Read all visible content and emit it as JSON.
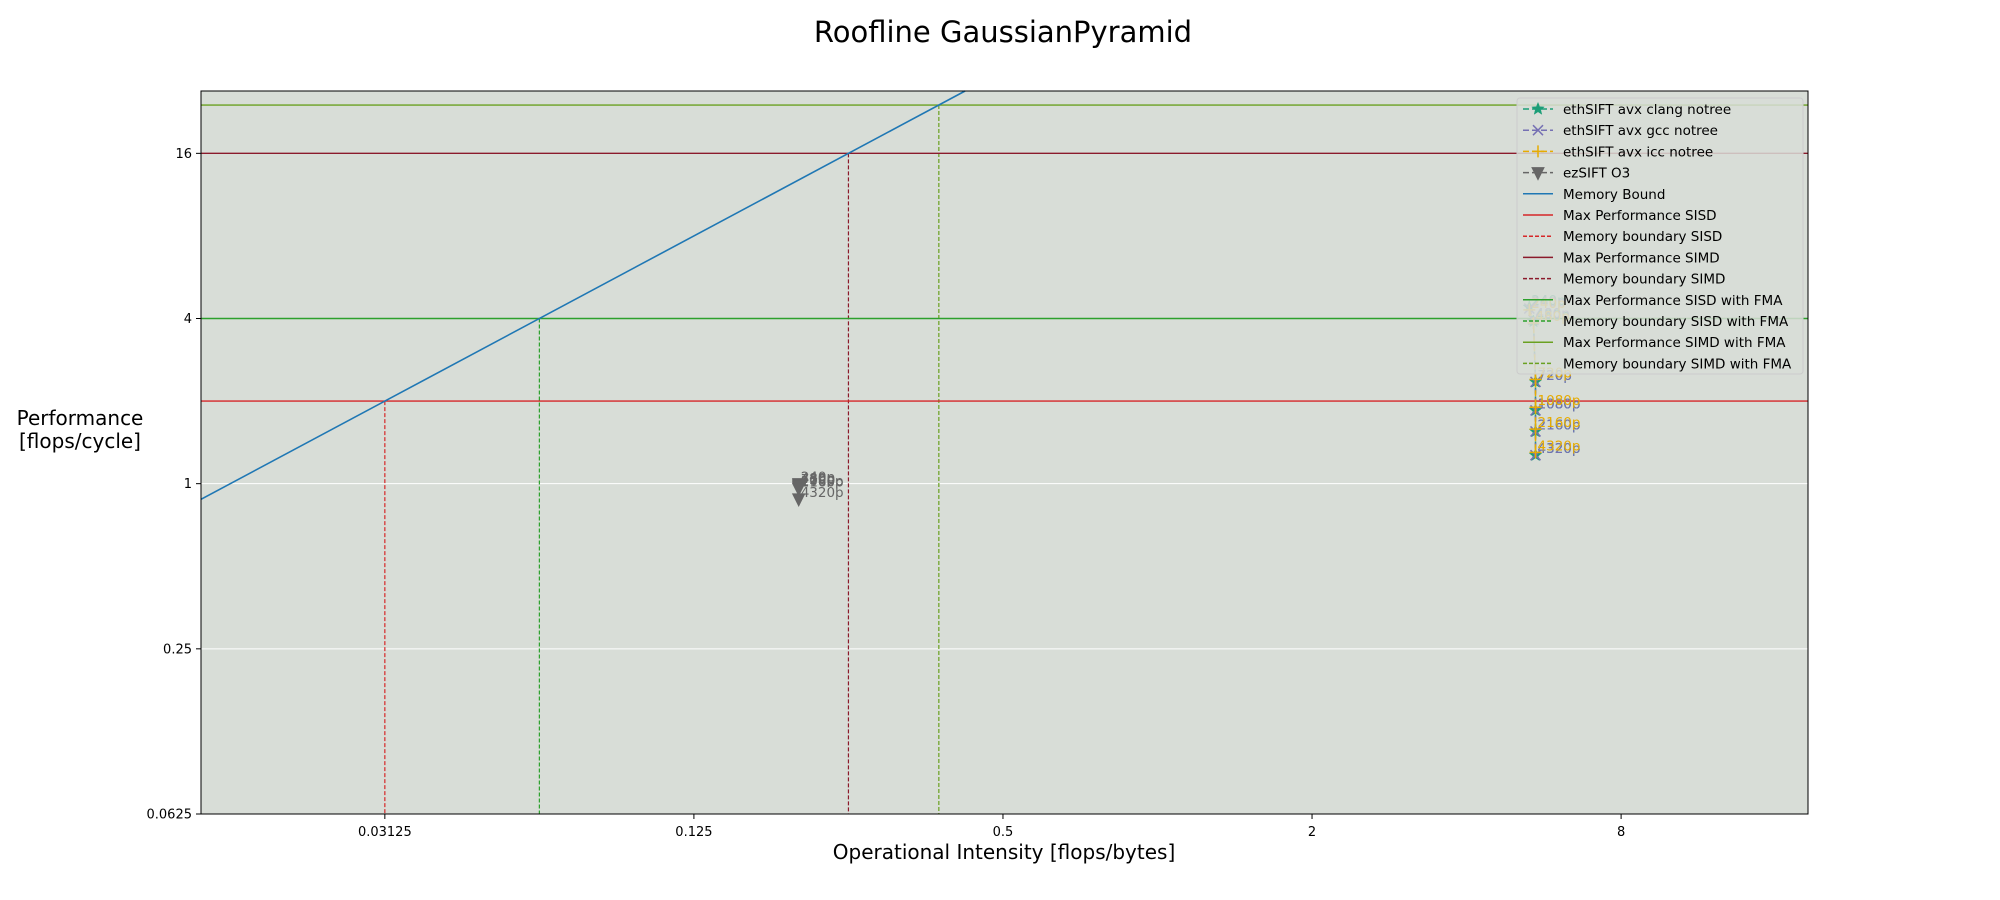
{
  "chart_data": {
    "type": "line",
    "title": "Roofline GaussianPyramid",
    "xlabel": "Operational Intensity [flops/bytes]",
    "ylabel": "Performance\n[flops/cycle]",
    "x_scale": "log2",
    "y_scale": "log2",
    "xlim": [
      0.0137,
      18.5
    ],
    "ylim": [
      0.0625,
      27
    ],
    "x_ticks": [
      0.03125,
      0.125,
      0.5,
      2,
      8
    ],
    "x_tick_labels": [
      "0.03125",
      "0.125",
      "0.5",
      "2",
      "8"
    ],
    "y_ticks": [
      0.0625,
      0.25,
      1,
      4,
      16
    ],
    "y_tick_labels": [
      "0.0625",
      "0.25",
      "1",
      "4",
      "16"
    ],
    "grid": "y-major",
    "background": "#d8ddd7",
    "legend_position": "top-right",
    "legend": [
      {
        "label": "ethSIFT avx clang notree",
        "color": "#1b9e77",
        "style": "dashed",
        "marker": "star"
      },
      {
        "label": "ethSIFT avx gcc notree",
        "color": "#7570b3",
        "style": "dashed",
        "marker": "x"
      },
      {
        "label": "ethSIFT avx icc notree",
        "color": "#e6ab02",
        "style": "dashed",
        "marker": "plus"
      },
      {
        "label": "ezSIFT O3",
        "color": "#666666",
        "style": "dashed",
        "marker": "triangle-down"
      },
      {
        "label": "Memory Bound",
        "color": "#1f77b4",
        "style": "solid",
        "marker": "none"
      },
      {
        "label": "Max Performance SISD",
        "color": "#d62728",
        "style": "solid",
        "marker": "none"
      },
      {
        "label": "Memory boundary SISD",
        "color": "#d62728",
        "style": "dashed",
        "marker": "none"
      },
      {
        "label": "Max Performance SIMD",
        "color": "#8b1a2b",
        "style": "solid",
        "marker": "none"
      },
      {
        "label": "Memory boundary SIMD",
        "color": "#8b1a2b",
        "style": "dashed",
        "marker": "none"
      },
      {
        "label": "Max Performance SISD with FMA",
        "color": "#2ca02c",
        "style": "solid",
        "marker": "none"
      },
      {
        "label": "Memory boundary SISD with FMA",
        "color": "#2ca02c",
        "style": "dashed",
        "marker": "none"
      },
      {
        "label": "Max Performance SIMD with FMA",
        "color": "#6aa121",
        "style": "solid",
        "marker": "none"
      },
      {
        "label": "Memory boundary SIMD with FMA",
        "color": "#6aa121",
        "style": "dashed",
        "marker": "none"
      }
    ],
    "roofline": {
      "memory_bound": {
        "bandwidth": 64,
        "color": "#1f77b4"
      },
      "ceilings": [
        {
          "name": "Max Performance SISD",
          "value": 2,
          "color": "#d62728",
          "dashed_color": "#d62728"
        },
        {
          "name": "Max Performance SIMD",
          "value": 16,
          "color": "#8b1a2b",
          "dashed_color": "#8b1a2b"
        },
        {
          "name": "Max Performance SISD with FMA",
          "value": 4,
          "color": "#2ca02c",
          "dashed_color": "#2ca02c"
        },
        {
          "name": "Max Performance SIMD with FMA",
          "value": 24,
          "color": "#6aa121",
          "dashed_color": "#6aa121"
        }
      ]
    },
    "series": [
      {
        "name": "ethSIFT avx clang notree",
        "color": "#1b9e77",
        "marker": "star",
        "points": [
          {
            "x": 5.3,
            "y": 4.4,
            "label": "240p"
          },
          {
            "x": 5.4,
            "y": 3.9,
            "label": "480p"
          },
          {
            "x": 5.45,
            "y": 2.35,
            "label": "720p"
          },
          {
            "x": 5.45,
            "y": 1.85,
            "label": "1080p"
          },
          {
            "x": 5.45,
            "y": 1.55,
            "label": "2160p"
          },
          {
            "x": 5.45,
            "y": 1.27,
            "label": "4320p"
          }
        ]
      },
      {
        "name": "ethSIFT avx gcc notree",
        "color": "#7570b3",
        "marker": "x",
        "points": [
          {
            "x": 5.3,
            "y": 4.35,
            "label": "240p"
          },
          {
            "x": 5.4,
            "y": 3.95,
            "label": "480p"
          },
          {
            "x": 5.45,
            "y": 2.35,
            "label": "720p"
          },
          {
            "x": 5.45,
            "y": 1.85,
            "label": "1080p"
          },
          {
            "x": 5.45,
            "y": 1.55,
            "label": "2160p"
          },
          {
            "x": 5.45,
            "y": 1.27,
            "label": "4320p"
          }
        ]
      },
      {
        "name": "ethSIFT avx icc notree",
        "color": "#e6ab02",
        "marker": "plus",
        "points": [
          {
            "x": 5.3,
            "y": 4.3,
            "label": "240p"
          },
          {
            "x": 5.4,
            "y": 3.85,
            "label": "480p"
          },
          {
            "x": 5.45,
            "y": 2.4,
            "label": "720p"
          },
          {
            "x": 5.45,
            "y": 1.9,
            "label": "1080p"
          },
          {
            "x": 5.45,
            "y": 1.58,
            "label": "2160p"
          },
          {
            "x": 5.45,
            "y": 1.3,
            "label": "4320p"
          }
        ]
      },
      {
        "name": "ezSIFT O3",
        "color": "#666666",
        "marker": "triangle-down",
        "points": [
          {
            "x": 0.2,
            "y": 1.0,
            "label": "240p"
          },
          {
            "x": 0.2,
            "y": 0.99,
            "label": "480p"
          },
          {
            "x": 0.2,
            "y": 0.98,
            "label": "720p"
          },
          {
            "x": 0.2,
            "y": 0.97,
            "label": "1080p"
          },
          {
            "x": 0.2,
            "y": 0.96,
            "label": "2160p"
          },
          {
            "x": 0.2,
            "y": 0.88,
            "label": "4320p"
          }
        ]
      }
    ]
  }
}
